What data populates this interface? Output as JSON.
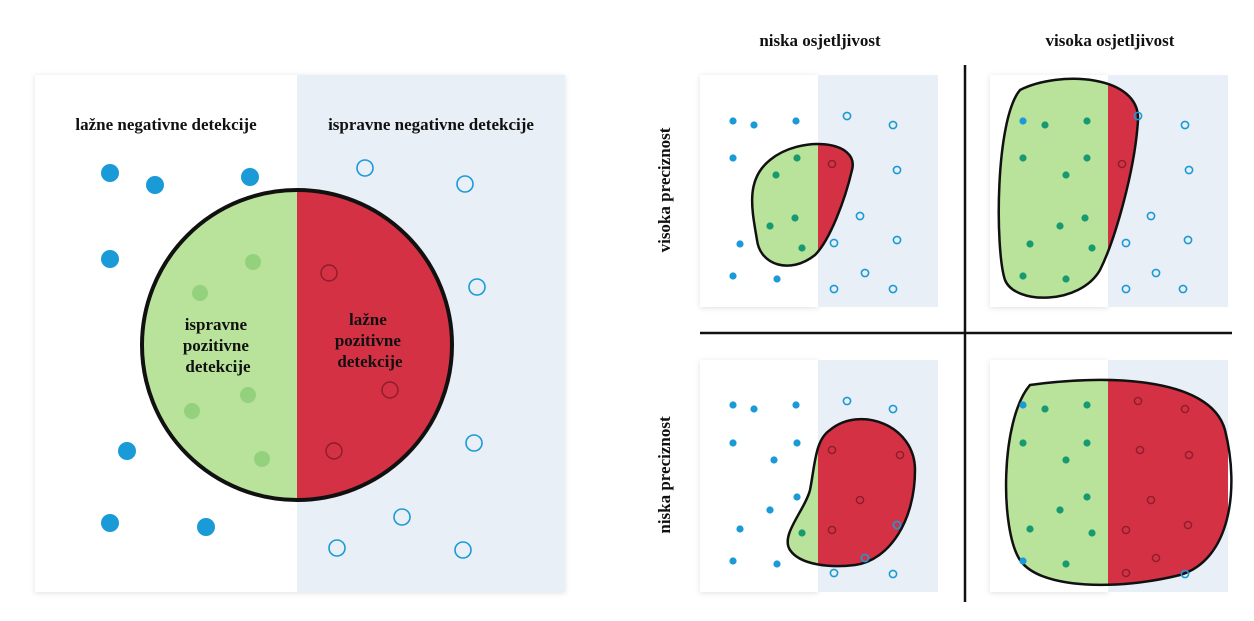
{
  "left_panel": {
    "top_left_label": "lažne negativne detekcije",
    "top_right_label": "ispravne negativne detekcije",
    "inside_left_label": [
      "ispravne",
      "pozitivne",
      "detekcije"
    ],
    "inside_right_label": [
      "lažne",
      "pozitivne",
      "detekcije"
    ]
  },
  "grid": {
    "columns": [
      "niska osjetljivost",
      "visoka osjetljivost"
    ],
    "rows": [
      "visoka preciznost",
      "niska preciznost"
    ]
  }
}
